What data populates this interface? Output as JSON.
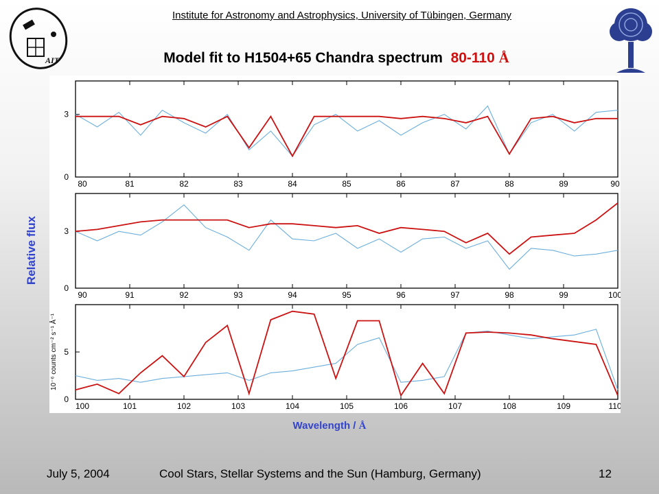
{
  "header": {
    "institute": "Institute for Astronomy and Astrophysics, University of Tübingen, Germany",
    "title_main": "Model fit to H1504+65 Chandra spectrum",
    "title_range": "80-110",
    "title_unit": "Å",
    "logo_left_text": "AIT"
  },
  "axis_labels": {
    "y": "Relative flux",
    "x_word": "Wavelength /",
    "x_unit": "Å",
    "inner_y": "10⁻⁶ counts cm⁻² s⁻¹ Å⁻¹"
  },
  "footer": {
    "date": "July 5, 2004",
    "conference": "Cool Stars, Stellar Systems and the Sun (Hamburg, Germany)",
    "page": "12"
  },
  "colors": {
    "observed": "#6aaedd",
    "model": "#cc1111",
    "axis_label": "#3344cc"
  },
  "chart_data": [
    {
      "type": "line",
      "xlim": [
        80,
        90
      ],
      "ylim": [
        0,
        4.6
      ],
      "xticks": [
        "80",
        "81",
        "82",
        "83",
        "84",
        "85",
        "86",
        "87",
        "88",
        "89",
        "90"
      ],
      "yticks": [
        "0",
        "3"
      ],
      "series": [
        {
          "role": "observed",
          "x": [
            80,
            80.4,
            80.8,
            81.2,
            81.6,
            82,
            82.4,
            82.8,
            83.2,
            83.6,
            84,
            84.4,
            84.8,
            85.2,
            85.6,
            86,
            86.4,
            86.8,
            87.2,
            87.6,
            88,
            88.4,
            88.8,
            89.2,
            89.6,
            90
          ],
          "y": [
            3.0,
            2.4,
            3.1,
            2.0,
            3.2,
            2.6,
            2.1,
            3.0,
            1.3,
            2.2,
            1.0,
            2.5,
            3.0,
            2.2,
            2.7,
            2.0,
            2.6,
            3.0,
            2.3,
            3.4,
            1.1,
            2.6,
            3.0,
            2.2,
            3.1,
            3.2
          ]
        },
        {
          "role": "model",
          "x": [
            80,
            80.4,
            80.8,
            81.2,
            81.6,
            82,
            82.4,
            82.8,
            83.2,
            83.6,
            84,
            84.4,
            84.8,
            85.2,
            85.6,
            86,
            86.4,
            86.8,
            87.2,
            87.6,
            88,
            88.4,
            88.8,
            89.2,
            89.6,
            90
          ],
          "y": [
            2.9,
            2.9,
            2.9,
            2.5,
            2.9,
            2.8,
            2.4,
            2.9,
            1.4,
            2.9,
            1.0,
            2.9,
            2.9,
            2.9,
            2.9,
            2.8,
            2.9,
            2.8,
            2.6,
            2.9,
            1.1,
            2.8,
            2.9,
            2.6,
            2.8,
            2.8
          ]
        }
      ]
    },
    {
      "type": "line",
      "xlim": [
        90,
        100
      ],
      "ylim": [
        0,
        5.0
      ],
      "xticks": [
        "90",
        "91",
        "92",
        "93",
        "94",
        "95",
        "96",
        "97",
        "98",
        "99",
        "100"
      ],
      "yticks": [
        "0",
        "3"
      ],
      "series": [
        {
          "role": "observed",
          "x": [
            90,
            90.4,
            90.8,
            91.2,
            91.6,
            92,
            92.4,
            92.8,
            93.2,
            93.6,
            94,
            94.4,
            94.8,
            95.2,
            95.6,
            96,
            96.4,
            96.8,
            97.2,
            97.6,
            98,
            98.4,
            98.8,
            99.2,
            99.6,
            100
          ],
          "y": [
            3.0,
            2.5,
            3.0,
            2.8,
            3.5,
            4.4,
            3.2,
            2.7,
            2.0,
            3.6,
            2.6,
            2.5,
            2.9,
            2.1,
            2.6,
            1.9,
            2.6,
            2.7,
            2.1,
            2.5,
            1.0,
            2.1,
            2.0,
            1.7,
            1.8,
            2.0
          ]
        },
        {
          "role": "model",
          "x": [
            90,
            90.4,
            90.8,
            91.2,
            91.6,
            92,
            92.4,
            92.8,
            93.2,
            93.6,
            94,
            94.4,
            94.8,
            95.2,
            95.6,
            96,
            96.4,
            96.8,
            97.2,
            97.6,
            98,
            98.4,
            98.8,
            99.2,
            99.6,
            100
          ],
          "y": [
            3.0,
            3.1,
            3.3,
            3.5,
            3.6,
            3.6,
            3.6,
            3.6,
            3.2,
            3.4,
            3.4,
            3.3,
            3.2,
            3.3,
            2.9,
            3.2,
            3.1,
            3.0,
            2.4,
            2.9,
            1.8,
            2.7,
            2.8,
            2.9,
            3.6,
            4.5
          ]
        }
      ]
    },
    {
      "type": "line",
      "xlim": [
        100,
        110
      ],
      "ylim": [
        0,
        10.0
      ],
      "xticks": [
        "100",
        "101",
        "102",
        "103",
        "104",
        "105",
        "106",
        "107",
        "108",
        "109",
        "110"
      ],
      "yticks": [
        "0",
        "5"
      ],
      "series": [
        {
          "role": "observed",
          "x": [
            100,
            100.4,
            100.8,
            101.2,
            101.6,
            102,
            102.4,
            102.8,
            103.2,
            103.6,
            104,
            104.4,
            104.8,
            105.2,
            105.6,
            106,
            106.4,
            106.8,
            107.2,
            107.6,
            108,
            108.4,
            108.8,
            109.2,
            109.6,
            110
          ],
          "y": [
            2.5,
            2.0,
            2.2,
            1.8,
            2.2,
            2.4,
            2.6,
            2.8,
            2.0,
            2.8,
            3.0,
            3.4,
            3.8,
            5.8,
            6.5,
            1.8,
            2.0,
            2.4,
            7.0,
            7.2,
            6.8,
            6.4,
            6.6,
            6.8,
            7.4,
            1.0
          ]
        },
        {
          "role": "model",
          "x": [
            100,
            100.4,
            100.8,
            101.2,
            101.6,
            102,
            102.4,
            102.8,
            103.2,
            103.6,
            104,
            104.4,
            104.8,
            105.2,
            105.6,
            106,
            106.4,
            106.8,
            107.2,
            107.6,
            108,
            108.4,
            108.8,
            109.2,
            109.6,
            110
          ],
          "y": [
            1.0,
            1.6,
            0.6,
            2.8,
            4.6,
            2.4,
            6.0,
            7.8,
            0.6,
            8.4,
            9.3,
            9.0,
            2.2,
            8.3,
            8.3,
            0.4,
            3.8,
            0.6,
            7.0,
            7.1,
            7.0,
            6.8,
            6.4,
            6.1,
            5.8,
            0.4
          ]
        }
      ]
    }
  ]
}
